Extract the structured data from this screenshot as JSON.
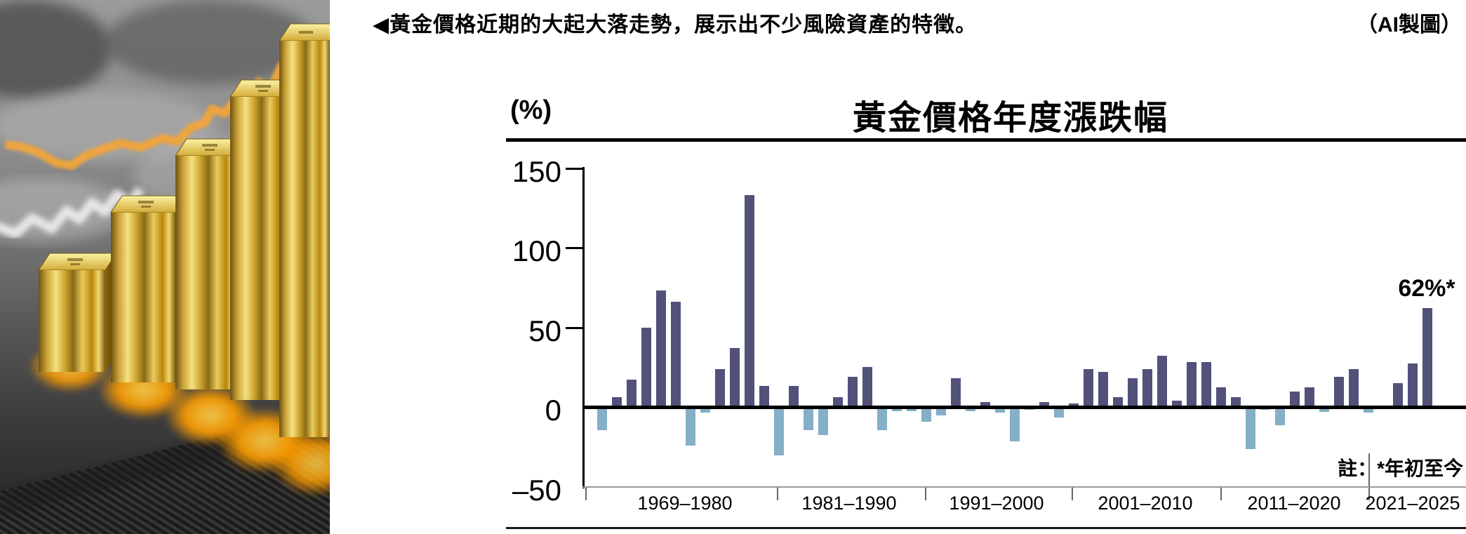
{
  "caption": {
    "text": "◀黃金價格近期的大起大落走勢，展示出不少風險資產的特徵。",
    "credit": "（AI製圖）"
  },
  "chart": {
    "title": "黃金價格年度漲跌幅",
    "unit_label": "(%)",
    "annotation": "62%*",
    "note": "註：*年初至今"
  },
  "chart_data": {
    "type": "bar",
    "title": "黃金價格年度漲跌幅",
    "ylabel": "(%)",
    "ylim": [
      -50,
      150
    ],
    "yticks": [
      150,
      100,
      50,
      0,
      -50
    ],
    "grid": false,
    "positive_color": "#51517a",
    "negative_color": "#85afc6",
    "group_labels": [
      "1969–1980",
      "1981–1990",
      "1991–2000",
      "2001–2010",
      "2011–2020",
      "2021–2025"
    ],
    "group_sizes": [
      12,
      10,
      10,
      10,
      10,
      5
    ],
    "years": [
      1969,
      1970,
      1971,
      1972,
      1973,
      1974,
      1975,
      1976,
      1977,
      1978,
      1979,
      1980,
      1981,
      1982,
      1983,
      1984,
      1985,
      1986,
      1987,
      1988,
      1989,
      1990,
      1991,
      1992,
      1993,
      1994,
      1995,
      1996,
      1997,
      1998,
      1999,
      2000,
      2001,
      2002,
      2003,
      2004,
      2005,
      2006,
      2007,
      2008,
      2009,
      2010,
      2011,
      2012,
      2013,
      2014,
      2015,
      2016,
      2017,
      2018,
      2019,
      2020,
      2021,
      2022,
      2023,
      2024,
      2025
    ],
    "values": [
      -14,
      6,
      17,
      50,
      73,
      66,
      -24,
      -3,
      24,
      37,
      133,
      13,
      -30,
      13,
      -14,
      -17,
      6,
      19,
      25,
      -14,
      -2,
      -2,
      -9,
      -5,
      18,
      -2,
      3,
      -3,
      -21,
      -1.5,
      3,
      -6,
      2,
      24,
      22,
      6,
      18,
      24,
      32,
      4,
      28,
      28,
      12.5,
      6,
      -26,
      -1.5,
      -11,
      9.5,
      12.5,
      -2.5,
      19,
      24,
      -3,
      -0.5,
      15,
      27.5,
      62
    ],
    "annotation": {
      "year": 2025,
      "label": "62%*"
    },
    "note": "註：*年初至今"
  }
}
